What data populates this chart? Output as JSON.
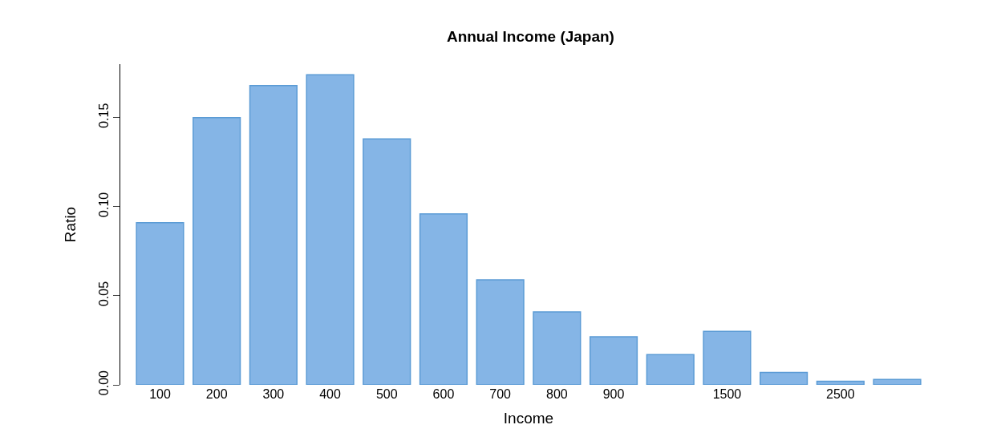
{
  "chart_data": {
    "type": "bar",
    "title": "Annual Income (Japan)",
    "xlabel": "Income",
    "ylabel": "Ratio",
    "categories": [
      "100",
      "200",
      "300",
      "400",
      "500",
      "600",
      "700",
      "800",
      "900",
      null,
      "1500",
      null,
      "2500",
      null
    ],
    "values": [
      0.091,
      0.15,
      0.168,
      0.174,
      0.138,
      0.096,
      0.059,
      0.041,
      0.027,
      0.017,
      0.03,
      0.007,
      0.002,
      0.003
    ],
    "color": "#85b5e6",
    "ylim": [
      0,
      0.18
    ],
    "yticks": [
      {
        "value": 0,
        "label": "0.00"
      },
      {
        "value": 0.05,
        "label": "0.05"
      },
      {
        "value": 0.1,
        "label": "0.10"
      },
      {
        "value": 0.15,
        "label": "0.15"
      }
    ],
    "legend": false
  }
}
